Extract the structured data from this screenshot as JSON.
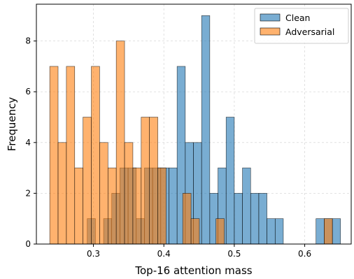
{
  "chart_data": {
    "type": "bar",
    "subtype": "overlaid-histogram",
    "title": "",
    "xlabel": "Top-16 attention mass",
    "ylabel": "Frequency",
    "xlim": [
      0.219,
      0.666
    ],
    "ylim": [
      0,
      9.45
    ],
    "xticks": [
      0.3,
      0.4,
      0.5,
      0.6
    ],
    "xtick_labels": [
      "0.3",
      "0.4",
      "0.5",
      "0.6"
    ],
    "yticks": [
      0,
      2,
      4,
      6,
      8
    ],
    "ytick_labels": [
      "0",
      "2",
      "4",
      "6",
      "8"
    ],
    "grid": true,
    "legend_position": "top-right",
    "series": [
      {
        "name": "Clean",
        "color": "#1f77b4",
        "bins": [
          {
            "x0": 0.2912,
            "x1": 0.3028,
            "count": 1
          },
          {
            "x0": 0.3144,
            "x1": 0.326,
            "count": 1
          },
          {
            "x0": 0.326,
            "x1": 0.3376,
            "count": 2
          },
          {
            "x0": 0.3376,
            "x1": 0.3492,
            "count": 3
          },
          {
            "x0": 0.3492,
            "x1": 0.3608,
            "count": 3
          },
          {
            "x0": 0.3608,
            "x1": 0.3724,
            "count": 1
          },
          {
            "x0": 0.3724,
            "x1": 0.384,
            "count": 3
          },
          {
            "x0": 0.384,
            "x1": 0.3956,
            "count": 3
          },
          {
            "x0": 0.3956,
            "x1": 0.4072,
            "count": 3
          },
          {
            "x0": 0.4072,
            "x1": 0.4188,
            "count": 3
          },
          {
            "x0": 0.4188,
            "x1": 0.4304,
            "count": 7
          },
          {
            "x0": 0.4304,
            "x1": 0.442,
            "count": 4
          },
          {
            "x0": 0.442,
            "x1": 0.4536,
            "count": 4
          },
          {
            "x0": 0.4536,
            "x1": 0.4652,
            "count": 9
          },
          {
            "x0": 0.4652,
            "x1": 0.4768,
            "count": 2
          },
          {
            "x0": 0.4768,
            "x1": 0.4884,
            "count": 3
          },
          {
            "x0": 0.4884,
            "x1": 0.5,
            "count": 5
          },
          {
            "x0": 0.5,
            "x1": 0.5116,
            "count": 2
          },
          {
            "x0": 0.5116,
            "x1": 0.5232,
            "count": 3
          },
          {
            "x0": 0.5232,
            "x1": 0.5348,
            "count": 2
          },
          {
            "x0": 0.5348,
            "x1": 0.5464,
            "count": 2
          },
          {
            "x0": 0.5464,
            "x1": 0.558,
            "count": 1
          },
          {
            "x0": 0.558,
            "x1": 0.5696,
            "count": 1
          },
          {
            "x0": 0.616,
            "x1": 0.6276,
            "count": 1
          },
          {
            "x0": 0.6276,
            "x1": 0.6392,
            "count": 1
          },
          {
            "x0": 0.6392,
            "x1": 0.6508,
            "count": 1
          }
        ]
      },
      {
        "name": "Adversarial",
        "color": "#ff7f0e",
        "bins": [
          {
            "x0": 0.238,
            "x1": 0.2498,
            "count": 7
          },
          {
            "x0": 0.2498,
            "x1": 0.2616,
            "count": 4
          },
          {
            "x0": 0.2616,
            "x1": 0.2734,
            "count": 7
          },
          {
            "x0": 0.2734,
            "x1": 0.2852,
            "count": 3
          },
          {
            "x0": 0.2852,
            "x1": 0.297,
            "count": 5
          },
          {
            "x0": 0.297,
            "x1": 0.3088,
            "count": 7
          },
          {
            "x0": 0.3088,
            "x1": 0.3206,
            "count": 4
          },
          {
            "x0": 0.3206,
            "x1": 0.3324,
            "count": 3
          },
          {
            "x0": 0.3324,
            "x1": 0.3442,
            "count": 8
          },
          {
            "x0": 0.3442,
            "x1": 0.356,
            "count": 4
          },
          {
            "x0": 0.356,
            "x1": 0.3678,
            "count": 3
          },
          {
            "x0": 0.3678,
            "x1": 0.3796,
            "count": 5
          },
          {
            "x0": 0.3796,
            "x1": 0.3914,
            "count": 5
          },
          {
            "x0": 0.3914,
            "x1": 0.4032,
            "count": 3
          },
          {
            "x0": 0.4268,
            "x1": 0.4386,
            "count": 2
          },
          {
            "x0": 0.4386,
            "x1": 0.4504,
            "count": 1
          },
          {
            "x0": 0.474,
            "x1": 0.4858,
            "count": 1
          },
          {
            "x0": 0.6276,
            "x1": 0.6394,
            "count": 1
          }
        ]
      }
    ]
  }
}
